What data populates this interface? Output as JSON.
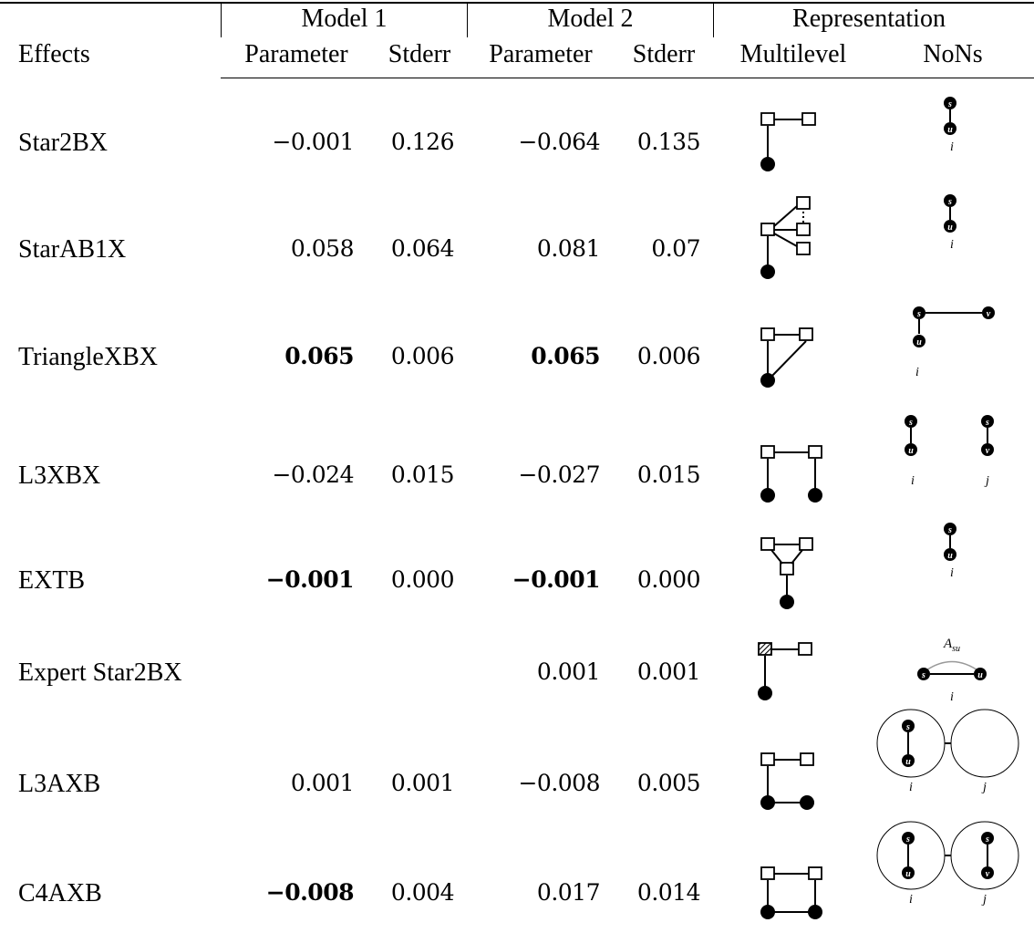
{
  "header": {
    "groups": [
      "Model 1",
      "Model 2",
      "Representation"
    ],
    "effects_label": "Effects",
    "sub": [
      "Parameter",
      "Stderr",
      "Parameter",
      "Stderr",
      "Multilevel",
      "NoNs"
    ]
  },
  "rows": [
    {
      "effect": "Star2BX",
      "m1_param": "−0.001",
      "m1_se": "0.126",
      "m2_param": "−0.064",
      "m2_se": "0.135",
      "m1_bold": false,
      "m2_bold": false,
      "nons": [
        "i"
      ]
    },
    {
      "effect": "StarAB1X",
      "m1_param": "0.058",
      "m1_se": "0.064",
      "m2_param": "0.081",
      "m2_se": "0.07",
      "m1_bold": false,
      "m2_bold": false,
      "nons": [
        "i"
      ]
    },
    {
      "effect": "TriangleXBX",
      "m1_param": "0.065",
      "m1_se": "0.006",
      "m2_param": "0.065",
      "m2_se": "0.006",
      "m1_bold": true,
      "m2_bold": true,
      "nons": [
        "i"
      ]
    },
    {
      "effect": "L3XBX",
      "m1_param": "−0.024",
      "m1_se": "0.015",
      "m2_param": "−0.027",
      "m2_se": "0.015",
      "m1_bold": false,
      "m2_bold": false,
      "nons": [
        "i",
        "j"
      ]
    },
    {
      "effect": "EXTB",
      "m1_param": "−0.001",
      "m1_se": "0.000",
      "m2_param": "−0.001",
      "m2_se": "0.000",
      "m1_bold": true,
      "m2_bold": true,
      "nons": [
        "i"
      ]
    },
    {
      "effect": "Expert Star2BX",
      "m1_param": "",
      "m1_se": "",
      "m2_param": "0.001",
      "m2_se": "0.001",
      "m1_bold": false,
      "m2_bold": false,
      "nons": [
        "i"
      ],
      "nons_top": "A",
      "nons_top_sub": "su"
    },
    {
      "effect": "L3AXB",
      "m1_param": "0.001",
      "m1_se": "0.001",
      "m2_param": "−0.008",
      "m2_se": "0.005",
      "m1_bold": false,
      "m2_bold": false,
      "nons": [
        "i",
        "j"
      ]
    },
    {
      "effect": "C4AXB",
      "m1_param": "−0.008",
      "m1_se": "0.004",
      "m2_param": "0.017",
      "m2_se": "0.014",
      "m1_bold": true,
      "m2_bold": false,
      "nons": [
        "i",
        "j"
      ]
    }
  ],
  "node_letters": {
    "s": "s",
    "u": "u",
    "v": "v"
  }
}
